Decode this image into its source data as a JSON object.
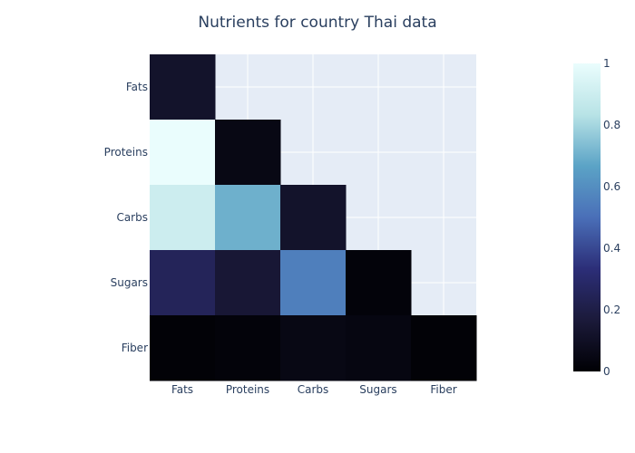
{
  "chart_data": {
    "type": "heatmap",
    "title": "Nutrients for country Thai data",
    "x_categories": [
      "Fats",
      "Proteins",
      "Carbs",
      "Sugars",
      "Fiber"
    ],
    "y_categories": [
      "Fats",
      "Proteins",
      "Carbs",
      "Sugars",
      "Fiber"
    ],
    "z": [
      [
        0.12,
        null,
        null,
        null,
        null
      ],
      [
        1.0,
        0.05,
        null,
        null,
        null
      ],
      [
        0.9,
        0.7,
        0.12,
        null,
        null
      ],
      [
        0.25,
        0.15,
        0.55,
        0.02,
        null
      ],
      [
        0.01,
        0.02,
        0.05,
        0.04,
        0.01
      ]
    ],
    "zlim": [
      0,
      1
    ],
    "colorbar_ticks": [
      "0",
      "0.2",
      "0.4",
      "0.6",
      "0.8",
      "1"
    ],
    "colorscale": [
      "#000004",
      "#1b1a3a",
      "#2c2e78",
      "#4a6fb8",
      "#5ba3c6",
      "#b8e3e6",
      "#eafdfd"
    ],
    "plot_background": "#e5ecf6",
    "grid": true
  }
}
